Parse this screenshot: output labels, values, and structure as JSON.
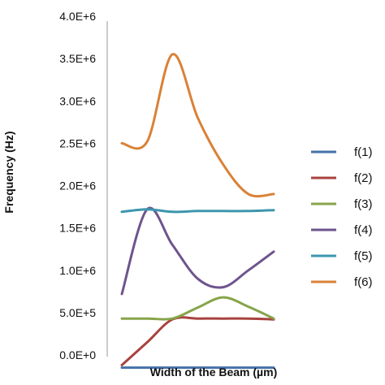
{
  "chart_data": {
    "type": "line",
    "title": "",
    "xlabel": "Width of the Beam (µm)",
    "ylabel": "Frequency (Hz)",
    "ylim": [
      0,
      4000000
    ],
    "ytick_values": [
      0,
      500000,
      1000000,
      1500000,
      2000000,
      2500000,
      3000000,
      3500000,
      4000000
    ],
    "ytick_labels": [
      "0.0E+0",
      "5.0E+5",
      "1.0E+6",
      "1.5E+6",
      "2.0E+6",
      "2.5E+6",
      "3.0E+6",
      "3.5E+6",
      "4.0E+6"
    ],
    "x": [
      0,
      1,
      2,
      3,
      4,
      5,
      6
    ],
    "legend_position": "right",
    "grid": false,
    "series": [
      {
        "name": "f(1)",
        "color": "#4472A8",
        "values": [
          -150000,
          -150000,
          -150000,
          -150000,
          -150000,
          -150000,
          -150000
        ]
      },
      {
        "name": "f(2)",
        "color": "#A8423F",
        "values": [
          -120000,
          150000,
          420000,
          430000,
          430000,
          430000,
          420000
        ]
      },
      {
        "name": "f(3)",
        "color": "#86A44A",
        "values": [
          430000,
          430000,
          430000,
          560000,
          680000,
          570000,
          430000
        ]
      },
      {
        "name": "f(4)",
        "color": "#6E548D",
        "values": [
          720000,
          1720000,
          1300000,
          900000,
          800000,
          1000000,
          1220000
        ]
      },
      {
        "name": "f(5)",
        "color": "#3D96AE",
        "values": [
          1690000,
          1720000,
          1690000,
          1700000,
          1700000,
          1700000,
          1710000
        ]
      },
      {
        "name": "f(6)",
        "color": "#DA8137",
        "values": [
          2500000,
          2520000,
          3550000,
          2800000,
          2250000,
          1900000,
          1900000
        ]
      }
    ]
  }
}
